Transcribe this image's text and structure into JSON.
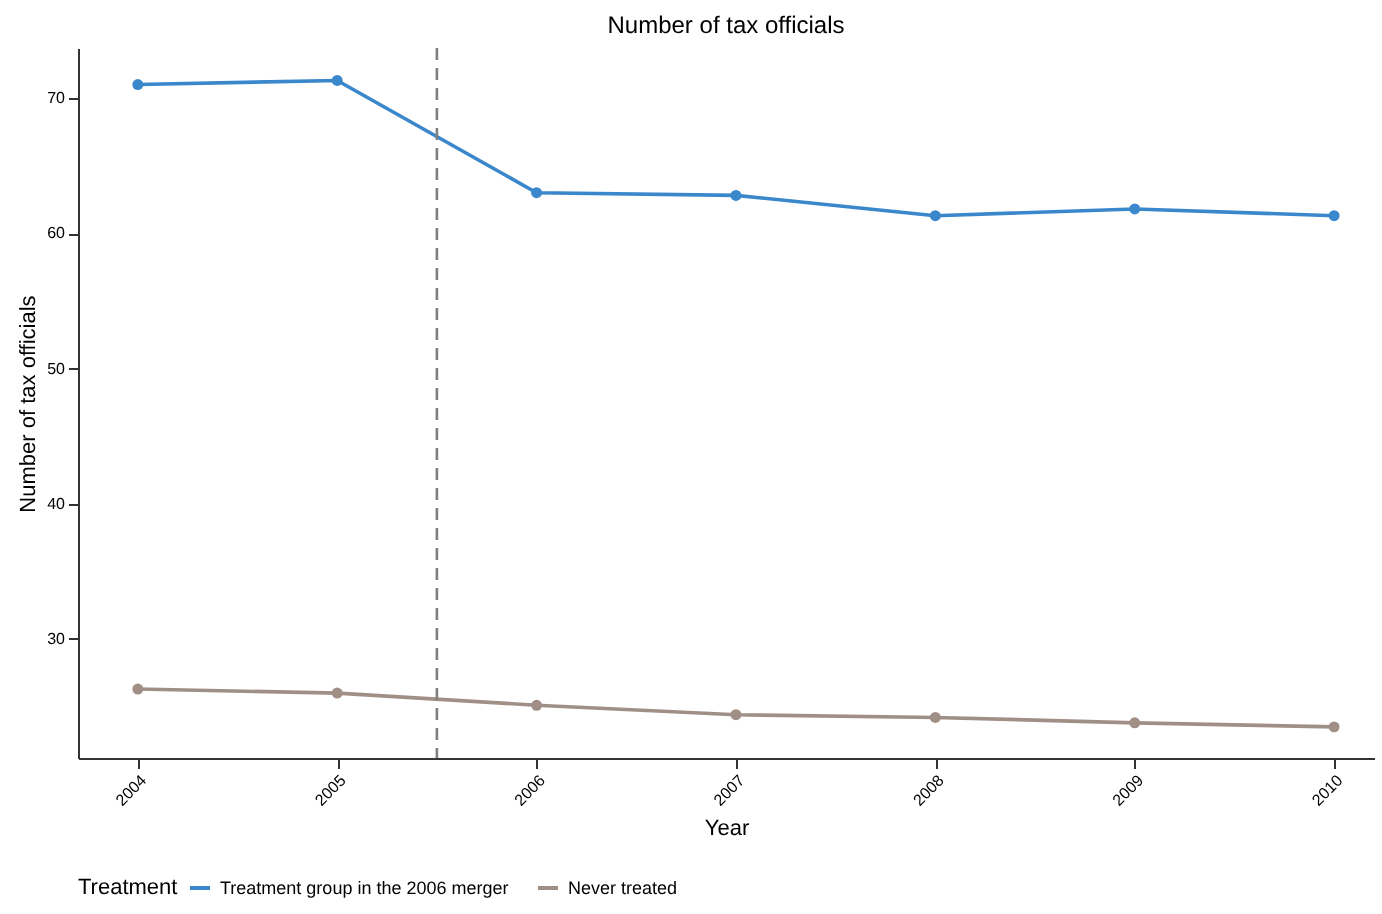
{
  "chart_data": {
    "type": "line",
    "title": "Number of tax officials",
    "xlabel": "Year",
    "ylabel": "Number of tax officials",
    "legend_title": "Treatment",
    "x": [
      2004,
      2005,
      2006,
      2007,
      2008,
      2009,
      2010
    ],
    "series": [
      {
        "name": "Treatment group in the 2006 merger",
        "color": "#3b87cc",
        "values": [
          71.0,
          71.3,
          63.0,
          62.8,
          61.3,
          61.8,
          61.3
        ]
      },
      {
        "name": "Never treated",
        "color": "#a08f87",
        "values": [
          26.3,
          26.0,
          25.1,
          24.4,
          24.2,
          23.8,
          23.5
        ]
      }
    ],
    "xlim": [
      2003.7,
      2010.2
    ],
    "xticks": [
      2004,
      2005,
      2006,
      2007,
      2008,
      2009,
      2010
    ],
    "ylim": [
      21.2,
      73.7
    ],
    "yticks": [
      30,
      40,
      50,
      60,
      70
    ],
    "ref_lines": [
      {
        "axis": "x",
        "value": 2005.5,
        "color": "#7f7f7f",
        "line_style": "dashed"
      }
    ],
    "grid": false,
    "legend": "bottom",
    "marker": "circle",
    "line_style": "solid"
  }
}
